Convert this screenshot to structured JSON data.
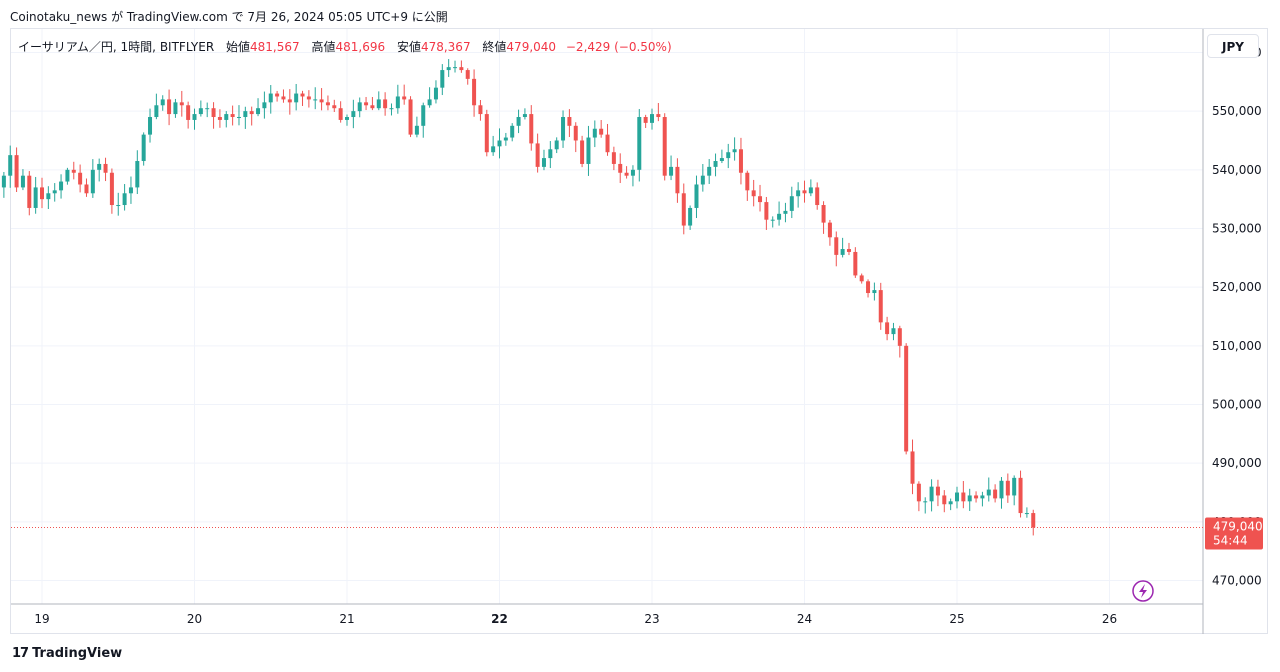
{
  "attribution": "Coinotaku_news が TradingView.com で 7月 26, 2024 05:05 UTC+9 に公開",
  "legend": {
    "symbol": "イーサリアム／円, 1時間, BITFLYER",
    "open_label": "始値",
    "open": "481,567",
    "high_label": "高値",
    "high": "481,696",
    "low_label": "安値",
    "low": "478,367",
    "close_label": "終値",
    "close": "479,040",
    "change": "−2,429 (−0.50%)"
  },
  "currency_button": "JPY",
  "price_tag": {
    "price": "479,040",
    "countdown": "54:44"
  },
  "footer_brand": "TradingView",
  "footer_logo": "17",
  "colors": {
    "up": "#26a69a",
    "down": "#ef5350",
    "grid": "#f0f3fa",
    "price_line": "#ef5350",
    "flash": "#9c27b0"
  },
  "chart_data": {
    "type": "candlestick",
    "title": "",
    "interval": "1時間",
    "ylim": [
      466000,
      564000
    ],
    "y_ticks": [
      470000,
      480000,
      490000,
      500000,
      510000,
      520000,
      530000,
      540000,
      550000,
      560000
    ],
    "y_tick_labels": [
      "470,000",
      "480,000",
      "490,000",
      "500,000",
      "510,000",
      "520,000",
      "530,000",
      "540,000",
      "550,000",
      "560,000"
    ],
    "x_ticks": [
      {
        "label": "19",
        "day": 19,
        "bold": false
      },
      {
        "label": "20",
        "day": 20,
        "bold": false
      },
      {
        "label": "21",
        "day": 21,
        "bold": false
      },
      {
        "label": "22",
        "day": 22,
        "bold": true
      },
      {
        "label": "23",
        "day": 23,
        "bold": false
      },
      {
        "label": "24",
        "day": 24,
        "bold": false
      },
      {
        "label": "25",
        "day": 25,
        "bold": false
      },
      {
        "label": "26",
        "day": 26,
        "bold": false
      }
    ],
    "grid": true,
    "last_price": 479040,
    "closes": [
      539000,
      542500,
      537000,
      539000,
      533500,
      537000,
      535000,
      536000,
      536500,
      538000,
      540000,
      539500,
      537500,
      536000,
      540000,
      541000,
      539500,
      534000,
      534000,
      536000,
      537000,
      541500,
      546000,
      549000,
      551000,
      552000,
      549500,
      551500,
      551000,
      548500,
      549500,
      550500,
      550500,
      549000,
      548500,
      549500,
      549000,
      549000,
      550000,
      549500,
      550500,
      551500,
      553000,
      552500,
      552000,
      551500,
      553000,
      552500,
      552000,
      552000,
      551500,
      551000,
      550500,
      548500,
      549000,
      550000,
      551500,
      551000,
      550500,
      552000,
      550500,
      550500,
      552500,
      552000,
      546000,
      547500,
      551000,
      552000,
      554000,
      557000,
      557500,
      557500,
      557000,
      555500,
      551000,
      549500,
      543000,
      544000,
      545000,
      545500,
      547500,
      549000,
      549500,
      544500,
      540500,
      542000,
      543500,
      545000,
      549000,
      547500,
      545000,
      541000,
      545500,
      547000,
      546000,
      543000,
      541000,
      539500,
      539000,
      540000,
      549000,
      548000,
      549500,
      549000,
      539000,
      540500,
      536000,
      530500,
      533500,
      537500,
      539000,
      540500,
      541500,
      542000,
      543000,
      543500,
      539500,
      536500,
      535500,
      534500,
      531500,
      531500,
      532500,
      533000,
      535500,
      536500,
      536000,
      537000,
      534000,
      531000,
      528500,
      525500,
      526500,
      526000,
      522000,
      521000,
      519000,
      519500,
      514000,
      512000,
      513000,
      510000,
      492000,
      486500,
      483500,
      483500,
      486000,
      484500,
      483000,
      483500,
      485000,
      483500,
      484500,
      484000,
      484500,
      485500,
      484000,
      487000,
      484500,
      487500,
      481500,
      481500,
      479040
    ]
  }
}
